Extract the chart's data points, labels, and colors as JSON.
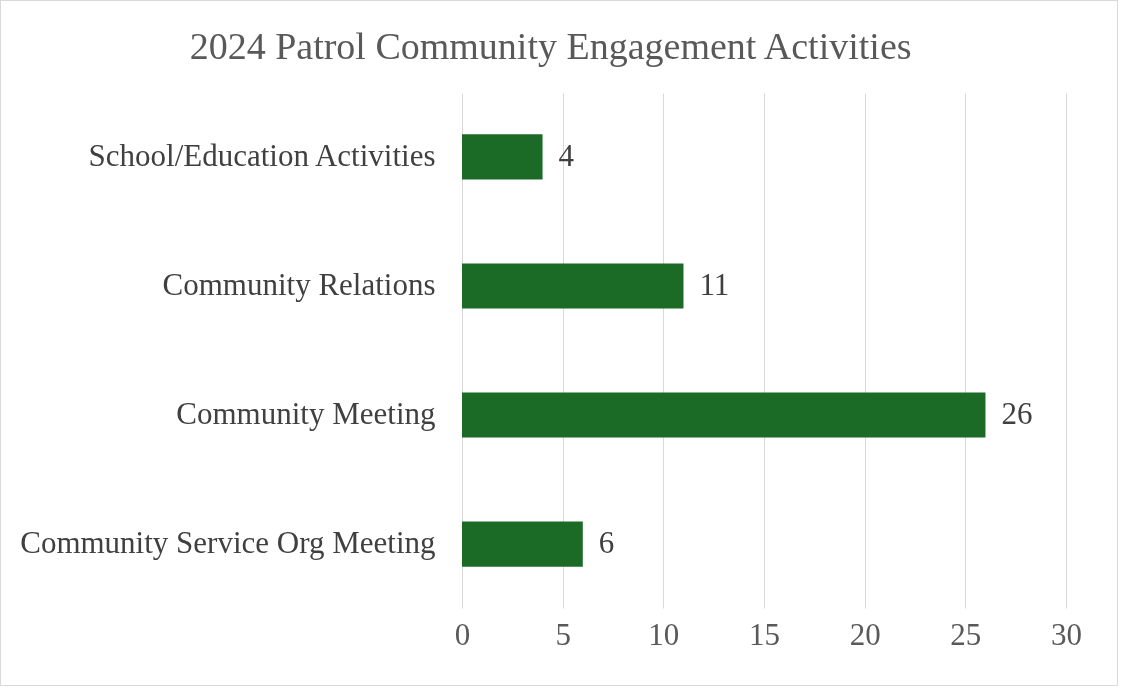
{
  "chart_data": {
    "type": "bar",
    "orientation": "horizontal",
    "title": "2024 Patrol Community Engagement Activities",
    "categories": [
      "School/Education Activities",
      "Community Relations",
      "Community Meeting",
      "Community Service Org Meeting"
    ],
    "values": [
      4,
      11,
      26,
      6
    ],
    "color": "#1b6b27",
    "xlim": [
      0,
      30
    ],
    "xticks": [
      0,
      5,
      10,
      15,
      20,
      25,
      30
    ],
    "grid": "x",
    "data_labels": true
  }
}
